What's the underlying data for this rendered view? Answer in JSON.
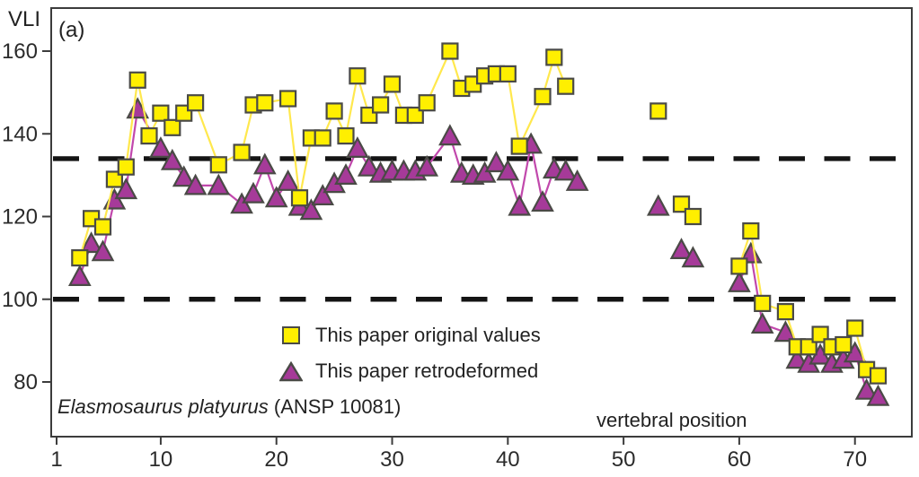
{
  "figure": {
    "panel_label": "(a)",
    "y_axis_label": "VLI",
    "x_axis_label": "vertebral position",
    "caption": {
      "species": "Elasmosaurus platyurus",
      "specimen": " (ANSP 10081)"
    },
    "legend": [
      {
        "marker": "square",
        "label": "This paper original values"
      },
      {
        "marker": "triangle",
        "label": "This paper retrodeformed"
      }
    ]
  },
  "chart_data": {
    "type": "line",
    "title": "",
    "xlabel": "vertebral position",
    "ylabel": "VLI",
    "xlim": [
      0.5,
      75
    ],
    "ylim": [
      67,
      170
    ],
    "x_ticks": [
      1,
      10,
      20,
      30,
      40,
      50,
      60,
      70
    ],
    "y_ticks": [
      160,
      140,
      120,
      100,
      80
    ],
    "grid": false,
    "legend_position": "lower center",
    "reference_lines_y": [
      134,
      100
    ],
    "reference_line_style": "dashed",
    "reference_line_color": "#141414",
    "frame_color": "#3c3c3c",
    "series": [
      {
        "name": "This paper original values",
        "marker": "square",
        "color": "#ffef00",
        "line_color": "#ffe84d",
        "edge_color": "#4a4a46",
        "runs": [
          [
            [
              3,
              110
            ],
            [
              4,
              119.5
            ],
            [
              5,
              117.5
            ],
            [
              6,
              129
            ],
            [
              7,
              132
            ],
            [
              8,
              153
            ],
            [
              9,
              139.5
            ],
            [
              10,
              145
            ],
            [
              11,
              141.5
            ],
            [
              12,
              145
            ],
            [
              13,
              147.5
            ],
            [
              15,
              132.5
            ],
            [
              17,
              135.5
            ],
            [
              18,
              147
            ],
            [
              19,
              147.5
            ],
            [
              21,
              148.5
            ],
            [
              22,
              124.5
            ],
            [
              23,
              139
            ],
            [
              24,
              139
            ],
            [
              25,
              145.5
            ],
            [
              26,
              139.5
            ],
            [
              27,
              154
            ],
            [
              28,
              144.5
            ],
            [
              29,
              147
            ],
            [
              30,
              152
            ],
            [
              31,
              144.5
            ],
            [
              32,
              144.5
            ],
            [
              33,
              147.5
            ],
            [
              35,
              160
            ],
            [
              36,
              151
            ],
            [
              37,
              152
            ],
            [
              38,
              154
            ],
            [
              39,
              154.5
            ],
            [
              40,
              154.5
            ],
            [
              41,
              137
            ],
            [
              43,
              149
            ],
            [
              44,
              158.5
            ],
            [
              45,
              151.5
            ]
          ],
          [
            [
              53,
              145.5
            ]
          ],
          [
            [
              55,
              123
            ],
            [
              56,
              120
            ]
          ],
          [
            [
              60,
              108
            ],
            [
              61,
              116.5
            ],
            [
              62,
              99
            ],
            [
              64,
              97
            ],
            [
              65,
              88.5
            ],
            [
              66,
              88.5
            ],
            [
              67,
              91.5
            ],
            [
              68,
              88.5
            ],
            [
              69,
              89
            ],
            [
              70,
              93
            ],
            [
              71,
              83
            ],
            [
              72,
              81.5
            ]
          ]
        ]
      },
      {
        "name": "This paper retrodeformed",
        "marker": "triangle",
        "color": "#a63a99",
        "line_color": "#c148ac",
        "edge_color": "#4a4a46",
        "runs": [
          [
            [
              3,
              105.5
            ],
            [
              4,
              113.5
            ],
            [
              5,
              111.5
            ],
            [
              6,
              124
            ],
            [
              7,
              126.5
            ],
            [
              8,
              146
            ],
            [
              10,
              136.5
            ],
            [
              11,
              133.5
            ],
            [
              12,
              129.5
            ],
            [
              13,
              127.5
            ],
            [
              15,
              127.5
            ],
            [
              17,
              123
            ],
            [
              18,
              125.5
            ],
            [
              19,
              132.5
            ],
            [
              20,
              124.5
            ],
            [
              21,
              128.5
            ],
            [
              22,
              122.5
            ],
            [
              23,
              121.5
            ],
            [
              24,
              125
            ],
            [
              25,
              128
            ],
            [
              26,
              130
            ],
            [
              27,
              136.5
            ],
            [
              28,
              132
            ],
            [
              29,
              130.5
            ],
            [
              30,
              131
            ],
            [
              31,
              131
            ],
            [
              32,
              131
            ],
            [
              33,
              132
            ],
            [
              35,
              139.5
            ],
            [
              36,
              130.5
            ],
            [
              37,
              130
            ],
            [
              38,
              130.5
            ],
            [
              39,
              133
            ],
            [
              40,
              131
            ],
            [
              41,
              122.5
            ],
            [
              42,
              137.5
            ],
            [
              43,
              123.5
            ],
            [
              44,
              131.5
            ],
            [
              45,
              131
            ],
            [
              46,
              128.5
            ]
          ],
          [
            [
              53,
              122.5
            ]
          ],
          [
            [
              55,
              112
            ],
            [
              56,
              110
            ]
          ],
          [
            [
              60,
              104
            ],
            [
              61,
              111
            ],
            [
              62,
              94
            ],
            [
              64,
              92
            ],
            [
              65,
              85.5
            ],
            [
              66,
              84.5
            ],
            [
              67,
              86.5
            ],
            [
              68,
              84.5
            ],
            [
              69,
              85.5
            ],
            [
              70,
              87
            ],
            [
              71,
              78
            ],
            [
              72,
              76.5
            ]
          ]
        ]
      }
    ]
  }
}
